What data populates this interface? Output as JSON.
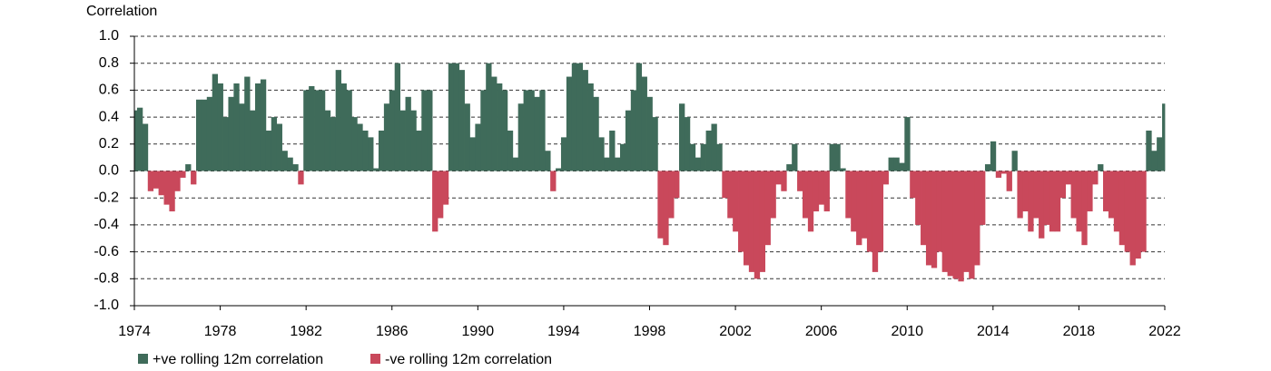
{
  "chart_data": {
    "type": "area",
    "y_label": "Correlation",
    "xlim": [
      1974,
      2022
    ],
    "xticks": [
      1974,
      1978,
      1982,
      1986,
      1990,
      1994,
      1998,
      2002,
      2006,
      2010,
      2014,
      2018,
      2022
    ],
    "ylim": [
      -1.0,
      1.0
    ],
    "yticks": [
      {
        "value": 1.0,
        "label": "1.0"
      },
      {
        "value": 0.8,
        "label": "0.8"
      },
      {
        "value": 0.6,
        "label": "0.6"
      },
      {
        "value": 0.4,
        "label": "0.4"
      },
      {
        "value": 0.2,
        "label": "0.2"
      },
      {
        "value": 0.0,
        "label": "0.0"
      },
      {
        "value": -0.2,
        "label": "-0.2"
      },
      {
        "value": -0.4,
        "label": "-0.4"
      },
      {
        "value": -0.6,
        "label": "-0.6"
      },
      {
        "value": -0.8,
        "label": "-0.8"
      },
      {
        "value": -1.0,
        "label": "-1.0"
      }
    ],
    "grid": true,
    "legend": "bottom",
    "x": [
      1974,
      1974.25,
      1974.5,
      1974.75,
      1975,
      1975.25,
      1975.5,
      1975.75,
      1976,
      1976.25,
      1976.5,
      1976.75,
      1977,
      1977.25,
      1977.5,
      1977.75,
      1978,
      1978.25,
      1978.5,
      1978.75,
      1979,
      1979.25,
      1979.5,
      1979.75,
      1980,
      1980.25,
      1980.5,
      1980.75,
      1981,
      1981.25,
      1981.5,
      1981.75,
      1982,
      1982.25,
      1982.5,
      1982.75,
      1983,
      1983.25,
      1983.5,
      1983.75,
      1984,
      1984.25,
      1984.5,
      1984.75,
      1985,
      1985.25,
      1985.5,
      1985.75,
      1986,
      1986.25,
      1986.5,
      1986.75,
      1987,
      1987.25,
      1987.5,
      1987.75,
      1988,
      1988.25,
      1988.5,
      1988.75,
      1989,
      1989.25,
      1989.5,
      1989.75,
      1990,
      1990.25,
      1990.5,
      1990.75,
      1991,
      1991.25,
      1991.5,
      1991.75,
      1992,
      1992.25,
      1992.5,
      1992.75,
      1993,
      1993.25,
      1993.5,
      1993.75,
      1994,
      1994.25,
      1994.5,
      1994.75,
      1995,
      1995.25,
      1995.5,
      1995.75,
      1996,
      1996.25,
      1996.5,
      1996.75,
      1997,
      1997.25,
      1997.5,
      1997.75,
      1998,
      1998.25,
      1998.5,
      1998.75,
      1999,
      1999.25,
      1999.5,
      1999.75,
      2000,
      2000.25,
      2000.5,
      2000.75,
      2001,
      2001.25,
      2001.5,
      2001.75,
      2002,
      2002.25,
      2002.5,
      2002.75,
      2003,
      2003.25,
      2003.5,
      2003.75,
      2004,
      2004.25,
      2004.5,
      2004.75,
      2005,
      2005.25,
      2005.5,
      2005.75,
      2006,
      2006.25,
      2006.5,
      2006.75,
      2007,
      2007.25,
      2007.5,
      2007.75,
      2008,
      2008.25,
      2008.5,
      2008.75,
      2009,
      2009.25,
      2009.5,
      2009.75,
      2010,
      2010.25,
      2010.5,
      2010.75,
      2011,
      2011.25,
      2011.5,
      2011.75,
      2012,
      2012.25,
      2012.5,
      2012.75,
      2013,
      2013.25,
      2013.5,
      2013.75,
      2014,
      2014.25,
      2014.5,
      2014.75,
      2015,
      2015.25,
      2015.5,
      2015.75,
      2016,
      2016.25,
      2016.5,
      2016.75,
      2017,
      2017.25,
      2017.5,
      2017.75,
      2018,
      2018.25,
      2018.5,
      2018.75,
      2019,
      2019.25,
      2019.5,
      2019.75,
      2020,
      2020.25,
      2020.5,
      2020.75,
      2021,
      2021.25,
      2021.5,
      2021.75,
      2022
    ],
    "series": [
      {
        "name": "+ve rolling 12m correlation",
        "color": "#3f6b5a",
        "values": [
          0.45,
          0.47,
          0.35,
          null,
          null,
          null,
          null,
          null,
          null,
          null,
          0.05,
          null,
          0.53,
          0.53,
          0.55,
          0.72,
          0.65,
          0.4,
          0.55,
          0.65,
          0.5,
          0.7,
          0.45,
          0.65,
          0.68,
          0.3,
          0.4,
          0.35,
          0.15,
          0.1,
          0.05,
          null,
          0.6,
          0.63,
          0.6,
          0.6,
          0.45,
          0.4,
          0.75,
          0.65,
          0.6,
          0.4,
          0.35,
          0.3,
          0.25,
          0.02,
          0.3,
          0.5,
          0.6,
          0.8,
          0.45,
          0.55,
          0.45,
          0.3,
          0.6,
          0.6,
          null,
          null,
          null,
          0.8,
          0.8,
          0.75,
          0.5,
          0.25,
          0.35,
          0.6,
          0.8,
          0.7,
          0.65,
          0.6,
          0.3,
          0.1,
          0.5,
          0.6,
          0.6,
          0.55,
          0.6,
          0.15,
          null,
          0.02,
          0.25,
          0.7,
          0.8,
          0.8,
          0.75,
          0.65,
          0.55,
          0.25,
          0.1,
          0.3,
          0.1,
          0.2,
          0.45,
          0.6,
          0.8,
          0.7,
          0.55,
          0.4,
          null,
          null,
          null,
          null,
          0.5,
          0.4,
          0.2,
          0.1,
          0.2,
          0.3,
          0.35,
          0.2,
          null,
          null,
          null,
          null,
          null,
          null,
          null,
          null,
          null,
          null,
          null,
          null,
          0.05,
          0.2,
          null,
          null,
          null,
          null,
          null,
          null,
          0.2,
          0.2,
          0.02,
          null,
          null,
          null,
          null,
          null,
          null,
          null,
          null,
          0.1,
          0.1,
          0.06,
          0.4,
          null,
          null,
          null,
          null,
          null,
          null,
          null,
          null,
          null,
          null,
          null,
          null,
          null,
          null,
          0.05,
          0.22,
          null,
          null,
          null,
          0.15,
          null,
          null,
          null,
          null,
          null,
          null,
          null,
          null,
          null,
          null,
          null,
          null,
          null,
          null,
          null,
          0.05,
          null,
          null,
          null,
          null,
          null,
          null,
          null,
          null,
          0.3,
          0.15,
          0.25,
          0.5
        ]
      },
      {
        "name": "-ve rolling 12m correlation",
        "color": "#c9485b",
        "values": [
          null,
          null,
          null,
          -0.15,
          -0.13,
          -0.18,
          -0.25,
          -0.3,
          -0.15,
          -0.05,
          null,
          -0.1,
          null,
          null,
          null,
          null,
          null,
          null,
          null,
          null,
          null,
          null,
          null,
          null,
          null,
          null,
          null,
          null,
          null,
          null,
          null,
          -0.1,
          null,
          null,
          null,
          null,
          null,
          null,
          null,
          null,
          null,
          null,
          null,
          null,
          null,
          null,
          null,
          null,
          null,
          null,
          null,
          null,
          null,
          null,
          null,
          null,
          -0.45,
          -0.35,
          -0.25,
          null,
          null,
          null,
          null,
          null,
          null,
          null,
          null,
          null,
          null,
          null,
          null,
          null,
          null,
          null,
          null,
          null,
          null,
          null,
          -0.15,
          null,
          null,
          null,
          null,
          null,
          null,
          null,
          null,
          null,
          null,
          null,
          null,
          null,
          null,
          null,
          null,
          null,
          null,
          null,
          -0.5,
          -0.55,
          -0.35,
          -0.2,
          null,
          null,
          null,
          null,
          null,
          null,
          null,
          null,
          -0.2,
          -0.35,
          -0.45,
          -0.6,
          -0.7,
          -0.75,
          -0.8,
          -0.75,
          -0.55,
          -0.35,
          -0.1,
          -0.15,
          null,
          null,
          -0.15,
          -0.35,
          -0.45,
          -0.3,
          -0.25,
          -0.3,
          null,
          null,
          null,
          -0.35,
          -0.45,
          -0.55,
          -0.5,
          -0.6,
          -0.75,
          -0.6,
          -0.1,
          null,
          null,
          null,
          null,
          -0.2,
          -0.4,
          -0.55,
          -0.7,
          -0.72,
          -0.6,
          -0.75,
          -0.78,
          -0.8,
          -0.82,
          -0.75,
          -0.8,
          -0.7,
          -0.4,
          null,
          null,
          -0.05,
          -0.02,
          -0.15,
          null,
          -0.35,
          -0.3,
          -0.45,
          -0.35,
          -0.5,
          -0.4,
          -0.45,
          -0.45,
          -0.2,
          -0.1,
          -0.35,
          -0.45,
          -0.55,
          -0.3,
          -0.1,
          null,
          -0.3,
          -0.35,
          -0.45,
          -0.55,
          -0.6,
          -0.7,
          -0.65,
          -0.6,
          null,
          null,
          null,
          null
        ]
      }
    ]
  }
}
